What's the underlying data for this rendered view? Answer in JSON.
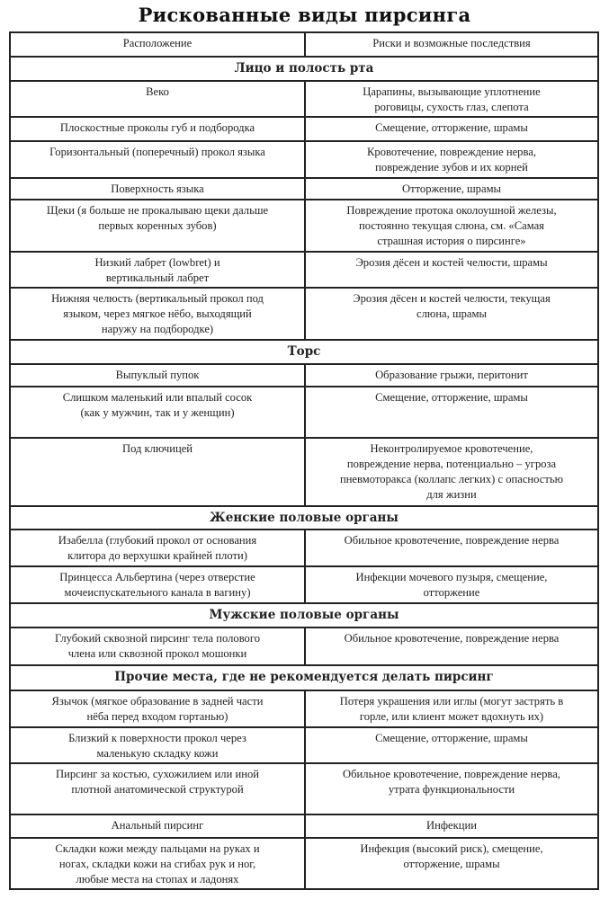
{
  "title": "Рискованные виды пирсинга",
  "header": {
    "place": "Расположение",
    "risk": "Риски и возможные последствия"
  },
  "rows": [
    {
      "section": "Лицо и полость рта"
    },
    {
      "place": "Веко",
      "risk": "Царапины, вызывающие уплотнение\nроговицы, сухость глаз, слепота"
    },
    {
      "place": "Плоскостные проколы губ и подбородка",
      "risk": "Смещение, отторжение, шрамы"
    },
    {
      "place": "Горизонтальный (поперечный) прокол языка",
      "risk": "Кровотечение, повреждение нерва,\nповреждение зубов и их корней"
    },
    {
      "place": "Поверхность языка",
      "risk": "Отторжение, шрамы"
    },
    {
      "place": "Щеки (я больше не прокалываю щеки дальше\nпервых коренных зубов)",
      "risk": "Повреждение протока околоушной железы,\nпостоянно текущая слюна, см. «Самая\nстрашная история о пирсинге»"
    },
    {
      "place": "Низкий лабрет (lowbret) и\nвертикальный лабрет",
      "risk": "Эрозия дёсен и костей челюсти, шрамы"
    },
    {
      "place": "Нижняя челюсть (вертикальный прокол под\nязыком, через мягкое нёбо, выходящий\nнаружу на подбородке)",
      "risk": "Эрозия дёсен и костей челюсти, текущая\nслюна, шрамы"
    },
    {
      "section": "Торс"
    },
    {
      "place": "Выпуклый пупок",
      "risk": "Образование грыжи, перитонит"
    },
    {
      "place": "Слишком маленький или впалый сосок\n(как у мужчин, так и у женщин)",
      "risk": "Смещение, отторжение, шрамы"
    },
    {
      "place": "Под ключицей",
      "risk": "Неконтролируемое кровотечение,\nповреждение нерва, потенциально – угроза\nпневмоторакса (коллапс легких) с опасностью\nдля жизни"
    },
    {
      "section": "Женские половые органы"
    },
    {
      "place": "Изабелла (глубокий прокол от основания\nклитора до верхушки крайней плоти)",
      "risk": "Обильное кровотечение, повреждение нерва"
    },
    {
      "place": "Принцесса Альбертина (через отверстие\nмочеиспускательного канала в вагину)",
      "risk": "Инфекции мочевого пузыря, смещение,\nотторжение"
    },
    {
      "section": "Мужские половые органы"
    },
    {
      "place": "Глубокий сквозной пирсинг тела полового\nчлена или сквозной прокол мошонки",
      "risk": "Обильное кровотечение, повреждение нерва"
    },
    {
      "section": "Прочие места, где не рекомендуется делать пирсинг"
    },
    {
      "place": "Язычок (мягкое образование в задней части\nнёба перед входом гортанью)",
      "risk": "Потеря украшения или иглы (могут застрять в\nгорле, или клиент может вдохнуть их)"
    },
    {
      "place": "Близкий к поверхности прокол через\nмаленькую складку кожи",
      "risk": "Смещение, отторжение, шрамы"
    },
    {
      "place": "Пирсинг за костью, сухожилием или иной\nплотной анатомической структурой",
      "risk": "Обильное кровотечение, повреждение нерва,\nутрата функциональности"
    },
    {
      "place": "Анальный пирсинг",
      "risk": "Инфекции"
    },
    {
      "place": "Складки кожи между пальцами на руках и\nногах, складки кожи на сгибах рук и ног,\nлюбые места на стопах и ладонях",
      "risk": "Инфекция (высокий риск), смещение,\nотторжение, шрамы"
    }
  ]
}
